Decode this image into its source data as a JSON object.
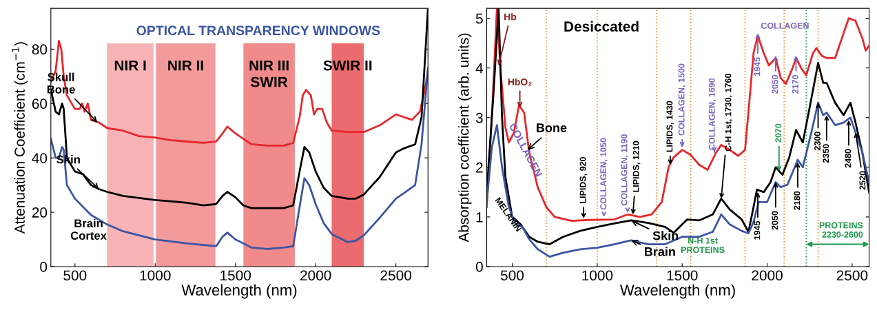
{
  "chart_data": [
    {
      "type": "line",
      "xlabel": "Wavelength (nm)",
      "ylabel": "Attenuation Coefficient (cm$^{−1}$)",
      "xlim": [
        350,
        2700
      ],
      "ylim": [
        0,
        95
      ],
      "xticks": [
        500,
        1000,
        1500,
        2000,
        2500
      ],
      "yticks": [
        0,
        20,
        40,
        60,
        80
      ],
      "grid": false,
      "legend": false,
      "marker": "none",
      "line_style": "solid",
      "bands": [
        {
          "axis": "x",
          "from": 700,
          "to": 990,
          "label": "NIR I",
          "color": "#f7b3b5"
        },
        {
          "axis": "x",
          "from": 1005,
          "to": 1375,
          "label": "NIR II",
          "color": "#f39a9b"
        },
        {
          "axis": "x",
          "from": 1550,
          "to": 1870,
          "label": "NIR III\nSWIR",
          "color": "#f08a8b"
        },
        {
          "axis": "x",
          "from": 2100,
          "to": 2300,
          "label": "SWIR II",
          "color": "#ec6b6e"
        }
      ],
      "annotations": [
        "OPTICAL TRANSPARENCY WINDOWS",
        {
          "text": "Skull\nBone",
          "x": 640,
          "y": 53
        },
        {
          "text": "Skin",
          "x": 650,
          "y": 28.5
        },
        "Brain\nCortex"
      ],
      "series": [
        {
          "color": "#e8262a",
          "x": [
            350,
            380,
            400,
            415,
            430,
            450,
            500,
            530,
            545,
            560,
            580,
            600,
            650,
            700,
            800,
            900,
            1000,
            1100,
            1200,
            1300,
            1380,
            1420,
            1450,
            1500,
            1550,
            1600,
            1700,
            1800,
            1860,
            1900,
            1920,
            1940,
            1970,
            1990,
            2010,
            2040,
            2070,
            2100,
            2200,
            2300,
            2400,
            2500,
            2550,
            2600,
            2650,
            2680,
            2700
          ],
          "values": [
            68,
            72,
            83,
            80,
            70,
            63,
            58,
            58,
            60,
            57,
            60,
            54,
            53,
            51,
            50,
            48,
            47.5,
            46.5,
            46,
            45.5,
            46,
            49,
            51.5,
            49,
            47,
            45,
            44.5,
            44.5,
            45.5,
            55,
            63,
            65,
            63,
            56,
            58,
            58,
            53,
            50,
            49.5,
            49.5,
            52,
            56,
            55,
            54,
            57,
            65,
            72
          ]
        },
        {
          "color": "#000000",
          "x": [
            350,
            380,
            400,
            420,
            430,
            450,
            500,
            550,
            600,
            650,
            700,
            800,
            1000,
            1200,
            1300,
            1380,
            1420,
            1450,
            1500,
            1550,
            1600,
            1700,
            1800,
            1860,
            1900,
            1930,
            1960,
            2000,
            2050,
            2100,
            2200,
            2250,
            2300,
            2400,
            2500,
            2550,
            2620,
            2660,
            2700
          ],
          "values": [
            65,
            57,
            56,
            60,
            58,
            40,
            35,
            34,
            30,
            28.5,
            27.5,
            26,
            24.5,
            23.5,
            22.5,
            23,
            26,
            27.5,
            25.5,
            22.5,
            21.5,
            21.5,
            21.5,
            22.5,
            35,
            44,
            42,
            35,
            29,
            26,
            25,
            25,
            26.5,
            33,
            42,
            43.5,
            45,
            55,
            95
          ]
        },
        {
          "color": "#3a55a4",
          "x": [
            350,
            380,
            400,
            420,
            430,
            450,
            500,
            550,
            600,
            700,
            800,
            1000,
            1200,
            1380,
            1420,
            1450,
            1500,
            1600,
            1700,
            1800,
            1860,
            1900,
            1930,
            1960,
            2000,
            2050,
            2100,
            2200,
            2250,
            2300,
            2400,
            2500,
            2550,
            2620,
            2660,
            2700
          ],
          "values": [
            47,
            40,
            40,
            44,
            43,
            30,
            25,
            22,
            19,
            15.5,
            13,
            10,
            8.5,
            7.5,
            11,
            12.5,
            10,
            7,
            6.5,
            7,
            7.5,
            22,
            32.5,
            30,
            23,
            16,
            12,
            9,
            9.5,
            11.5,
            18,
            25,
            27,
            30,
            45,
            73
          ]
        }
      ]
    },
    {
      "type": "line",
      "xlabel": "Wavelength (nm)",
      "ylabel": "Absorption coefficient (arb. units)",
      "xlim": [
        350,
        2600
      ],
      "ylim": [
        0,
        5.2
      ],
      "xticks": [
        500,
        1000,
        1500,
        2000,
        2500
      ],
      "yticks": [
        0,
        1,
        2,
        3,
        4,
        5
      ],
      "grid": false,
      "legend": false,
      "marker": "none",
      "line_style": "solid",
      "ref_lines": [
        {
          "axis": "x",
          "value": 700,
          "color": "#f28c28",
          "line_style": "dotted"
        },
        {
          "axis": "x",
          "value": 1000,
          "color": "#f28c28",
          "line_style": "dotted"
        },
        {
          "axis": "x",
          "value": 1350,
          "color": "#f28c28",
          "line_style": "dotted"
        },
        {
          "axis": "x",
          "value": 1550,
          "color": "#f28c28",
          "line_style": "dotted"
        },
        {
          "axis": "x",
          "value": 1870,
          "color": "#f28c28",
          "line_style": "dotted"
        },
        {
          "axis": "x",
          "value": 2100,
          "color": "#f28c28",
          "line_style": "dotted"
        },
        {
          "axis": "x",
          "value": 2300,
          "color": "#f28c28",
          "line_style": "dotted"
        },
        {
          "axis": "x",
          "value": 2230,
          "color": "#1a9a48",
          "line_style": "dotted"
        }
      ],
      "annotations": [
        "Desiccated",
        {
          "text": "Hb",
          "x": 420,
          "y": 4.05
        },
        {
          "text": "HbO₂",
          "x": 545,
          "y": 3.2
        },
        {
          "text": "Bone",
          "x": 590,
          "y": 2.35
        },
        "COLLAGEN",
        "MELANIN",
        {
          "text": "LIPIDS, 920",
          "x": 920,
          "y": 0.97
        },
        {
          "text": "COLLAGEN, 1050",
          "x": 1040,
          "y": 1.0
        },
        {
          "text": "COLLAGEN, 1190",
          "x": 1180,
          "y": 1.08
        },
        {
          "text": "LIPIDS, 1210",
          "x": 1210,
          "y": 1.05
        },
        {
          "text": "LIPIDS, 1430",
          "x": 1430,
          "y": 2.05
        },
        {
          "text": "COLLAGEN, 1500",
          "x": 1500,
          "y": 2.4
        },
        {
          "text": "COLLAGEN, 1690",
          "x": 1690,
          "y": 2.3
        },
        {
          "text": "C-H 1st, 1730, 1760",
          "x": 1730,
          "y": 1.37
        },
        {
          "text": "Skin",
          "x": 1200,
          "y": 0.93
        },
        {
          "text": "Brain",
          "x": 1200,
          "y": 0.53
        },
        "N-H 1st\nPROTEINS",
        {
          "text": "1945",
          "x": 1945,
          "y": 4.7
        },
        "COLLAGEN",
        {
          "text": "2050",
          "x": 2050,
          "y": 4.25
        },
        {
          "text": "2170",
          "x": 2170,
          "y": 4.25
        },
        {
          "text": "2070",
          "x": 2070,
          "y": 1.92
        },
        {
          "text": "1945",
          "x": 1945,
          "y": 1.5
        },
        {
          "text": "2050",
          "x": 2050,
          "y": 1.7
        },
        {
          "text": "2180",
          "x": 2180,
          "y": 2.1
        },
        {
          "text": "2300",
          "x": 2300,
          "y": 3.3
        },
        {
          "text": "2350",
          "x": 2350,
          "y": 3.05
        },
        {
          "text": "2480",
          "x": 2480,
          "y": 2.95
        },
        {
          "text": "2520",
          "x": 2520,
          "y": 2.7
        },
        {
          "text": "PROTEINS\n2230-2600",
          "x": 2230,
          "y": 0.45
        }
      ],
      "series": [
        {
          "color": "#e8262a",
          "x": [
            350,
            380,
            410,
            430,
            460,
            480,
            510,
            540,
            570,
            600,
            650,
            700,
            750,
            850,
            950,
            1100,
            1180,
            1250,
            1320,
            1380,
            1420,
            1450,
            1500,
            1550,
            1600,
            1650,
            1700,
            1730,
            1780,
            1830,
            1870,
            1900,
            1920,
            1945,
            1980,
            2010,
            2050,
            2080,
            2110,
            2150,
            2170,
            2200,
            2230,
            2270,
            2290,
            2320,
            2350,
            2400,
            2440,
            2480,
            2520,
            2560,
            2580,
            2600
          ],
          "values": [
            1.2,
            3.0,
            5.2,
            4.0,
            2.8,
            2.5,
            2.7,
            3.25,
            3.1,
            2.3,
            1.6,
            1.2,
            1.0,
            0.92,
            0.94,
            0.95,
            1.05,
            1.0,
            1.05,
            1.3,
            2.0,
            2.2,
            2.35,
            2.25,
            2.05,
            1.95,
            2.3,
            2.45,
            2.35,
            2.23,
            2.35,
            3.5,
            4.3,
            4.65,
            4.3,
            4.05,
            4.2,
            3.8,
            3.68,
            4.0,
            4.2,
            4.0,
            3.85,
            4.3,
            4.4,
            4.25,
            4.2,
            4.2,
            4.6,
            5.0,
            4.95,
            4.6,
            4.35,
            4.45
          ]
        },
        {
          "color": "#000000",
          "x": [
            350,
            390,
            420,
            440,
            460,
            500,
            550,
            600,
            650,
            720,
            800,
            900,
            1000,
            1100,
            1200,
            1300,
            1400,
            1450,
            1500,
            1530,
            1600,
            1680,
            1730,
            1780,
            1850,
            1890,
            1920,
            1940,
            1980,
            2020,
            2050,
            2090,
            2130,
            2170,
            2210,
            2250,
            2300,
            2330,
            2350,
            2400,
            2450,
            2490,
            2520,
            2560,
            2600
          ],
          "values": [
            1.5,
            3.5,
            5.2,
            3.0,
            1.8,
            1.0,
            0.85,
            0.6,
            0.5,
            0.45,
            0.6,
            0.72,
            0.8,
            0.87,
            0.93,
            0.88,
            0.8,
            0.68,
            0.85,
            0.95,
            0.93,
            1.05,
            1.37,
            1.15,
            0.95,
            0.7,
            1.2,
            1.55,
            1.5,
            1.7,
            2.0,
            1.85,
            2.2,
            2.75,
            2.5,
            3.2,
            4.1,
            3.7,
            3.7,
            3.3,
            3.05,
            3.3,
            2.9,
            2.3,
            1.5
          ]
        },
        {
          "color": "#3a55a4",
          "x": [
            350,
            380,
            410,
            440,
            480,
            520,
            560,
            600,
            650,
            720,
            800,
            900,
            1000,
            1100,
            1200,
            1300,
            1400,
            1500,
            1600,
            1680,
            1730,
            1780,
            1850,
            1890,
            1920,
            1950,
            2000,
            2050,
            2080,
            2120,
            2180,
            2210,
            2260,
            2300,
            2330,
            2350,
            2400,
            2450,
            2490,
            2520,
            2560,
            2600
          ],
          "values": [
            1.3,
            2.4,
            2.85,
            2.0,
            1.2,
            0.85,
            0.8,
            0.55,
            0.35,
            0.2,
            0.28,
            0.35,
            0.38,
            0.45,
            0.53,
            0.45,
            0.45,
            0.6,
            0.6,
            0.7,
            1.05,
            0.85,
            0.72,
            0.67,
            0.9,
            1.3,
            1.3,
            1.7,
            1.6,
            1.65,
            2.15,
            2.0,
            2.7,
            3.3,
            3.05,
            3.1,
            2.85,
            2.9,
            3.0,
            2.7,
            2.3,
            1.7
          ]
        }
      ]
    }
  ]
}
